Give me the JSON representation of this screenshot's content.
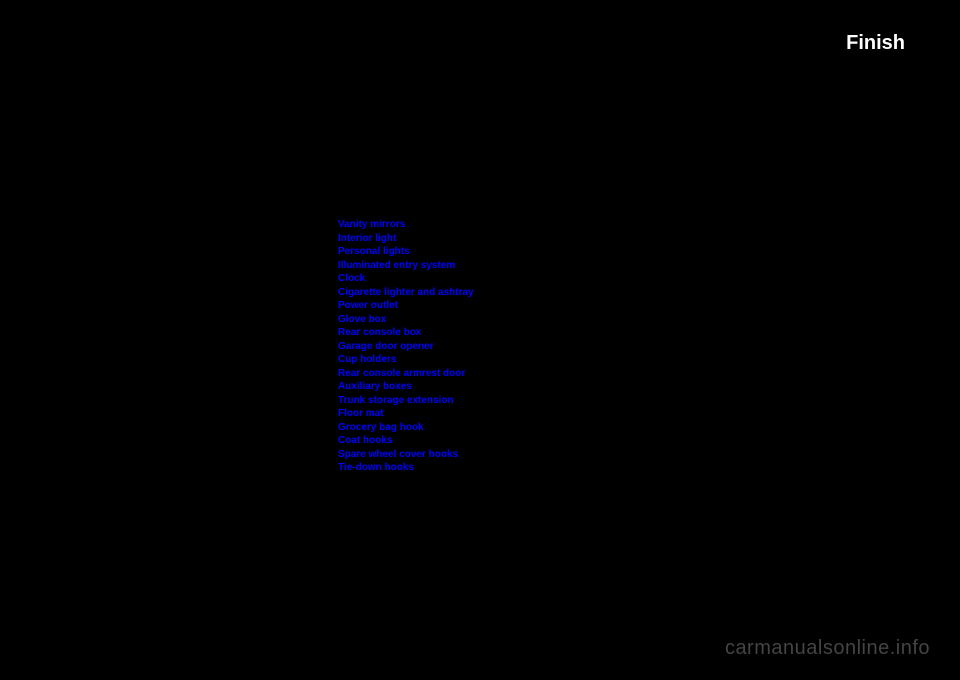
{
  "header": {
    "finish_label": "Finish"
  },
  "toc": {
    "items": [
      "Vanity mirrors",
      "Interior light",
      "Personal lights",
      "Illuminated entry system",
      "Clock",
      "Cigarette lighter and ashtray",
      "Power outlet",
      "Glove box",
      "Rear console box",
      "Garage door opener",
      "Cup holders",
      "Rear console armrest door",
      "Auxiliary boxes",
      "Trunk storage extension",
      "Floor mat",
      "Grocery bag hook",
      "Coat hooks",
      "Spare wheel cover hooks",
      "Tie-down hooks"
    ]
  },
  "watermark": "carmanualsonline.info"
}
